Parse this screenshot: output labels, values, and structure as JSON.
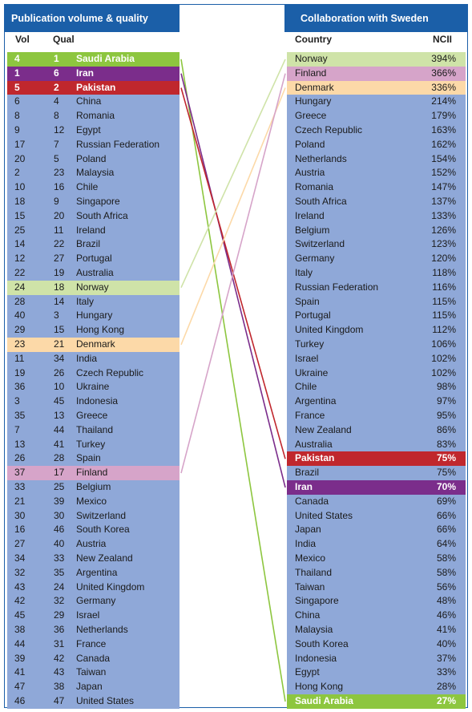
{
  "left_panel": {
    "title": "Publication volume & quality",
    "col_vol": "Vol",
    "col_qual": "Qual"
  },
  "right_panel": {
    "title": "Collaboration with Sweden",
    "col_country": "Country",
    "col_ncii": "NCII"
  },
  "highlight_colors": {
    "Saudi Arabia": "#8dc63f",
    "Iran": "#7b2d8b",
    "Pakistan": "#c0272d",
    "Norway": "#cfe3a8",
    "Denmark": "#fcd9a8",
    "Finland": "#d6a4c9"
  },
  "base_row_color": "#8fa8d8",
  "chart_data": {
    "type": "table",
    "title": "",
    "left_rows": [
      {
        "vol": "4",
        "qual": "1",
        "country": "Saudi Arabia"
      },
      {
        "vol": "1",
        "qual": "6",
        "country": "Iran"
      },
      {
        "vol": "5",
        "qual": "2",
        "country": "Pakistan"
      },
      {
        "vol": "6",
        "qual": "4",
        "country": "China"
      },
      {
        "vol": "8",
        "qual": "8",
        "country": "Romania"
      },
      {
        "vol": "9",
        "qual": "12",
        "country": "Egypt"
      },
      {
        "vol": "17",
        "qual": "7",
        "country": "Russian Federation"
      },
      {
        "vol": "20",
        "qual": "5",
        "country": "Poland"
      },
      {
        "vol": "2",
        "qual": "23",
        "country": "Malaysia"
      },
      {
        "vol": "10",
        "qual": "16",
        "country": "Chile"
      },
      {
        "vol": "18",
        "qual": "9",
        "country": "Singapore"
      },
      {
        "vol": "15",
        "qual": "20",
        "country": "South Africa"
      },
      {
        "vol": "25",
        "qual": "11",
        "country": "Ireland"
      },
      {
        "vol": "14",
        "qual": "22",
        "country": "Brazil"
      },
      {
        "vol": "12",
        "qual": "27",
        "country": "Portugal"
      },
      {
        "vol": "22",
        "qual": "19",
        "country": "Australia"
      },
      {
        "vol": "24",
        "qual": "18",
        "country": "Norway"
      },
      {
        "vol": "28",
        "qual": "14",
        "country": "Italy"
      },
      {
        "vol": "40",
        "qual": "3",
        "country": "Hungary"
      },
      {
        "vol": "29",
        "qual": "15",
        "country": "Hong Kong"
      },
      {
        "vol": "23",
        "qual": "21",
        "country": "Denmark"
      },
      {
        "vol": "11",
        "qual": "34",
        "country": "India"
      },
      {
        "vol": "19",
        "qual": "26",
        "country": "Czech Republic"
      },
      {
        "vol": "36",
        "qual": "10",
        "country": "Ukraine"
      },
      {
        "vol": "3",
        "qual": "45",
        "country": "Indonesia"
      },
      {
        "vol": "35",
        "qual": "13",
        "country": "Greece"
      },
      {
        "vol": "7",
        "qual": "44",
        "country": "Thailand"
      },
      {
        "vol": "13",
        "qual": "41",
        "country": "Turkey"
      },
      {
        "vol": "26",
        "qual": "28",
        "country": "Spain"
      },
      {
        "vol": "37",
        "qual": "17",
        "country": "Finland"
      },
      {
        "vol": "33",
        "qual": "25",
        "country": "Belgium"
      },
      {
        "vol": "21",
        "qual": "39",
        "country": "Mexico"
      },
      {
        "vol": "30",
        "qual": "30",
        "country": "Switzerland"
      },
      {
        "vol": "16",
        "qual": "46",
        "country": "South Korea"
      },
      {
        "vol": "27",
        "qual": "40",
        "country": "Austria"
      },
      {
        "vol": "34",
        "qual": "33",
        "country": "New Zealand"
      },
      {
        "vol": "32",
        "qual": "35",
        "country": "Argentina"
      },
      {
        "vol": "43",
        "qual": "24",
        "country": "United Kingdom"
      },
      {
        "vol": "42",
        "qual": "32",
        "country": "Germany"
      },
      {
        "vol": "45",
        "qual": "29",
        "country": "Israel"
      },
      {
        "vol": "38",
        "qual": "36",
        "country": "Netherlands"
      },
      {
        "vol": "44",
        "qual": "31",
        "country": "France"
      },
      {
        "vol": "39",
        "qual": "42",
        "country": "Canada"
      },
      {
        "vol": "41",
        "qual": "43",
        "country": "Taiwan"
      },
      {
        "vol": "47",
        "qual": "38",
        "country": "Japan"
      },
      {
        "vol": "46",
        "qual": "47",
        "country": "United States"
      }
    ],
    "right_rows": [
      {
        "country": "Norway",
        "ncii": "394%"
      },
      {
        "country": "Finland",
        "ncii": "366%"
      },
      {
        "country": "Denmark",
        "ncii": "336%"
      },
      {
        "country": "Hungary",
        "ncii": "214%"
      },
      {
        "country": "Greece",
        "ncii": "179%"
      },
      {
        "country": "Czech Republic",
        "ncii": "163%"
      },
      {
        "country": "Poland",
        "ncii": "162%"
      },
      {
        "country": "Netherlands",
        "ncii": "154%"
      },
      {
        "country": "Austria",
        "ncii": "152%"
      },
      {
        "country": "Romania",
        "ncii": "147%"
      },
      {
        "country": "South Africa",
        "ncii": "137%"
      },
      {
        "country": "Ireland",
        "ncii": "133%"
      },
      {
        "country": "Belgium",
        "ncii": "126%"
      },
      {
        "country": "Switzerland",
        "ncii": "123%"
      },
      {
        "country": "Germany",
        "ncii": "120%"
      },
      {
        "country": "Italy",
        "ncii": "118%"
      },
      {
        "country": "Russian Federation",
        "ncii": "116%"
      },
      {
        "country": "Spain",
        "ncii": "115%"
      },
      {
        "country": "Portugal",
        "ncii": "115%"
      },
      {
        "country": "United Kingdom",
        "ncii": "112%"
      },
      {
        "country": "Turkey",
        "ncii": "106%"
      },
      {
        "country": "Israel",
        "ncii": "102%"
      },
      {
        "country": "Ukraine",
        "ncii": "102%"
      },
      {
        "country": "Chile",
        "ncii": "98%"
      },
      {
        "country": "Argentina",
        "ncii": "97%"
      },
      {
        "country": "France",
        "ncii": "95%"
      },
      {
        "country": "New Zealand",
        "ncii": "86%"
      },
      {
        "country": "Australia",
        "ncii": "83%"
      },
      {
        "country": "Pakistan",
        "ncii": "75%"
      },
      {
        "country": "Brazil",
        "ncii": "75%"
      },
      {
        "country": "Iran",
        "ncii": "70%"
      },
      {
        "country": "Canada",
        "ncii": "69%"
      },
      {
        "country": "United States",
        "ncii": "66%"
      },
      {
        "country": "Japan",
        "ncii": "66%"
      },
      {
        "country": "India",
        "ncii": "64%"
      },
      {
        "country": "Mexico",
        "ncii": "58%"
      },
      {
        "country": "Thailand",
        "ncii": "58%"
      },
      {
        "country": "Taiwan",
        "ncii": "56%"
      },
      {
        "country": "Singapore",
        "ncii": "48%"
      },
      {
        "country": "China",
        "ncii": "46%"
      },
      {
        "country": "Malaysia",
        "ncii": "41%"
      },
      {
        "country": "South Korea",
        "ncii": "40%"
      },
      {
        "country": "Indonesia",
        "ncii": "37%"
      },
      {
        "country": "Egypt",
        "ncii": "33%"
      },
      {
        "country": "Hong Kong",
        "ncii": "28%"
      },
      {
        "country": "Saudi Arabia",
        "ncii": "27%"
      }
    ],
    "connectors": [
      "Saudi Arabia",
      "Iran",
      "Pakistan",
      "Norway",
      "Denmark",
      "Finland"
    ]
  }
}
